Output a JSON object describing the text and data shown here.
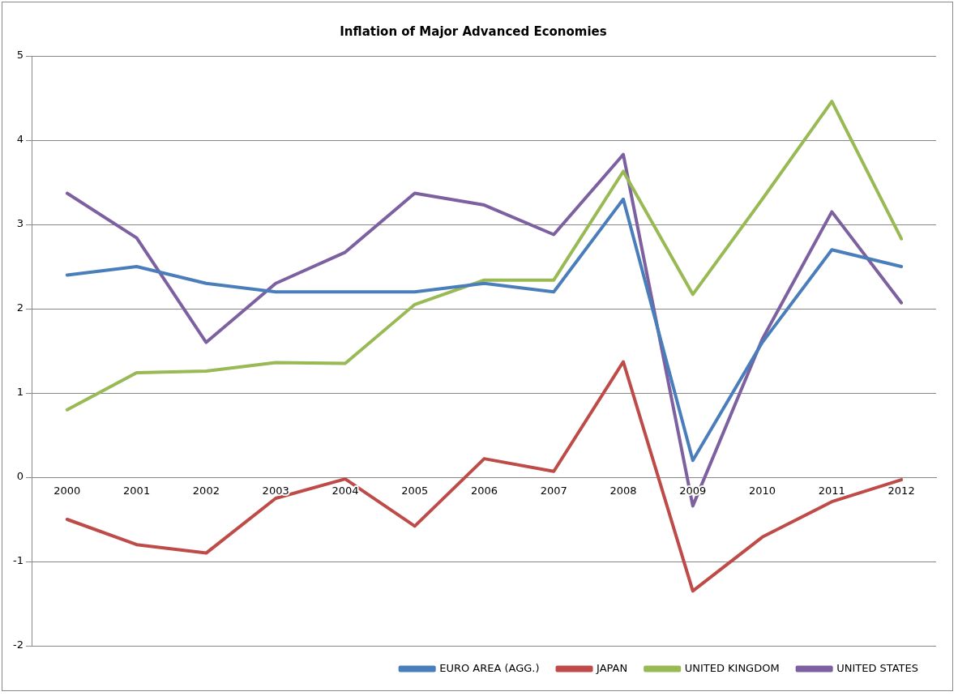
{
  "chart_data": {
    "type": "line",
    "title": "Inflation of Major Advanced Economies",
    "categories": [
      "2000",
      "2001",
      "2002",
      "2003",
      "2004",
      "2005",
      "2006",
      "2007",
      "2008",
      "2009",
      "2010",
      "2011",
      "2012"
    ],
    "series": [
      {
        "name": "EURO AREA (AGG.)",
        "color": "#4a7ebb",
        "values": [
          2.4,
          2.5,
          2.3,
          2.2,
          2.2,
          2.2,
          2.3,
          2.2,
          3.3,
          0.2,
          1.6,
          2.7,
          2.5
        ]
      },
      {
        "name": "JAPAN",
        "color": "#be4b48",
        "values": [
          -0.5,
          -0.8,
          -0.9,
          -0.25,
          -0.02,
          -0.58,
          0.22,
          0.07,
          1.37,
          -1.35,
          -0.71,
          -0.29,
          -0.03
        ]
      },
      {
        "name": "UNITED KINGDOM",
        "color": "#98b954",
        "values": [
          0.8,
          1.24,
          1.26,
          1.36,
          1.35,
          2.05,
          2.34,
          2.34,
          3.63,
          2.17,
          3.3,
          4.46,
          2.83
        ]
      },
      {
        "name": "UNITED STATES",
        "color": "#7d60a0",
        "values": [
          3.37,
          2.84,
          1.6,
          2.3,
          2.67,
          3.37,
          3.23,
          2.88,
          3.83,
          -0.34,
          1.64,
          3.15,
          2.07
        ]
      }
    ],
    "ylim": [
      -2,
      5
    ],
    "yticks": [
      -2,
      -1,
      0,
      1,
      2,
      3,
      4,
      5
    ],
    "grid": "y",
    "legend": "bottom right",
    "marker": "none",
    "line_style": "solid"
  }
}
